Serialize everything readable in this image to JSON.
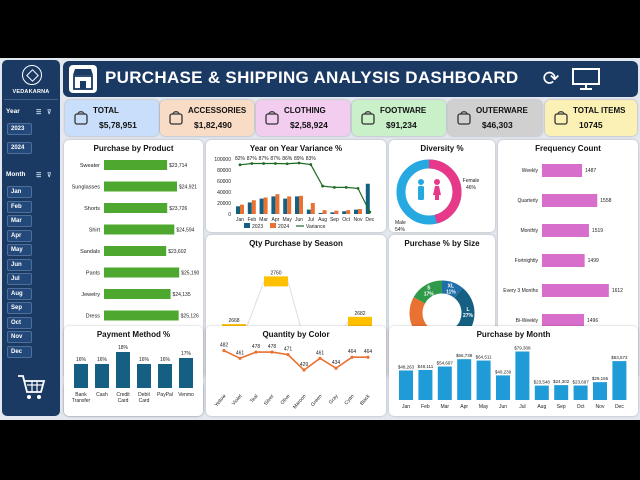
{
  "brand": "VEDAKARNA",
  "dashboard_title": "PURCHASE & SHIPPING ANALYSIS DASHBOARD",
  "slicers": {
    "year": {
      "label": "Year",
      "items": [
        "2023",
        "2024"
      ]
    },
    "month": {
      "label": "Month",
      "items": [
        "Jan",
        "Feb",
        "Mar",
        "Apr",
        "May",
        "Jun",
        "Jul",
        "Aug",
        "Sep",
        "Oct",
        "Nov",
        "Dec"
      ]
    }
  },
  "kpis": [
    {
      "label": "TOTAL",
      "value": "$5,78,951",
      "bg": "#c9defa",
      "icon": "cart-icon"
    },
    {
      "label": "ACCESSORIES",
      "value": "$1,82,490",
      "bg": "#f9dcc6",
      "icon": "bag-icon"
    },
    {
      "label": "CLOTHING",
      "value": "$2,58,924",
      "bg": "#f3cdf0",
      "icon": "yarn-icon"
    },
    {
      "label": "FOOTWARE",
      "value": "$91,234",
      "bg": "#c9f0c8",
      "icon": "footprints-icon"
    },
    {
      "label": "OUTERWARE",
      "value": "$46,303",
      "bg": "#d0d0d0",
      "icon": "jacket-icon"
    },
    {
      "label": "TOTAL ITEMS",
      "value": "10745",
      "bg": "#fcf1b4",
      "icon": "boxes-icon"
    }
  ],
  "colors": {
    "navy": "#1a3a63",
    "green": "#4ea72e",
    "blue": "#156082",
    "orange": "#e97132",
    "gold": "#ffc000",
    "pink": "#d86ecc",
    "sky": "#1f9bd7",
    "female": "#e8388a",
    "male": "#26a8e0"
  },
  "chart_data": [
    {
      "type": "bar",
      "title": "Purchase by Product",
      "orientation": "horizontal",
      "categories": [
        "Sweater",
        "Sunglasses",
        "Shorts",
        "Shirt",
        "Sandals",
        "Pants",
        "Jewelry",
        "Dress",
        "Blouse",
        "Belt"
      ],
      "values": [
        23714,
        24921,
        23726,
        24594,
        23602,
        25190,
        24135,
        25126,
        25037,
        23967
      ],
      "labels": [
        "$23,714",
        "$24,921",
        "$23,726",
        "$24,594",
        "$23,602",
        "$25,190",
        "$24,135",
        "$25,126",
        "$25,037",
        "$23,967"
      ],
      "xlim": [
        16000,
        27000
      ]
    },
    {
      "type": "bar",
      "title": "Year on Year Variance %",
      "categories": [
        "Jan",
        "Feb",
        "Mar",
        "Apr",
        "May",
        "Jun",
        "Jul",
        "Aug",
        "Sep",
        "Oct",
        "Nov",
        "Dec"
      ],
      "series": [
        {
          "name": "2023",
          "values": [
            14000,
            21000,
            28000,
            32000,
            28000,
            32000,
            8000,
            2000,
            3000,
            5000,
            8000,
            55000
          ]
        },
        {
          "name": "2024",
          "values": [
            17000,
            25000,
            30000,
            36000,
            32000,
            33000,
            20000,
            7000,
            6000,
            7000,
            9000,
            0
          ]
        },
        {
          "name": "Variance",
          "values": [
            82,
            87,
            87,
            87,
            86,
            89,
            83,
            0,
            -5,
            -5,
            -9,
            -100
          ]
        }
      ],
      "variance_labels": [
        "82%",
        "87%",
        "87%",
        "87%",
        "86%",
        "89%",
        "83%",
        "",
        "",
        "",
        "",
        ""
      ],
      "yticks": [
        "100000",
        "80000",
        "60000",
        "40000",
        "20000",
        "0"
      ],
      "ylim": [
        0,
        100000
      ]
    },
    {
      "type": "pie",
      "title": "Diversity %",
      "slices": [
        {
          "name": "Female",
          "value": 46,
          "label": "46%"
        },
        {
          "name": "Male",
          "value": 54,
          "label": "54%"
        }
      ]
    },
    {
      "type": "bar",
      "title": "Frequency Count",
      "orientation": "horizontal",
      "categories": [
        "Weekly",
        "Quarterly",
        "Monthly",
        "Fortnightly",
        "Every 3 Months",
        "Bi-Weekly",
        "Annually"
      ],
      "values": [
        1487,
        1558,
        1519,
        1499,
        1612,
        1496,
        1574
      ],
      "xlim": [
        1300,
        1650
      ]
    },
    {
      "type": "line",
      "title": "Qty Purchase by Season",
      "categories": [
        "Fall",
        "Spring",
        "Summer",
        "Winter"
      ],
      "values": [
        2668,
        2760,
        2635,
        2682
      ]
    },
    {
      "type": "pie",
      "title": "Purchase % by Size",
      "slices": [
        {
          "name": "XL",
          "value": 11,
          "label": "11%"
        },
        {
          "name": "L",
          "value": 27,
          "label": "27%"
        },
        {
          "name": "M",
          "value": 45,
          "label": "45%"
        },
        {
          "name": "S",
          "value": 17,
          "label": "17%"
        }
      ]
    },
    {
      "type": "bar",
      "title": "Payment Method %",
      "categories": [
        "Bank Transfer",
        "Cash",
        "Credit Card",
        "Debit Card",
        "PayPal",
        "Venmo"
      ],
      "values": [
        16,
        16,
        18,
        16,
        16,
        17
      ],
      "labels": [
        "16%",
        "16%",
        "18%",
        "16%",
        "16%",
        "17%"
      ],
      "ylim": [
        12,
        19
      ]
    },
    {
      "type": "line",
      "title": "Quantity by Color",
      "categories": [
        "Yellow",
        "Violet",
        "Teal",
        "Silver",
        "Olive",
        "Maroon",
        "Green",
        "Gray",
        "Cyan",
        "Black"
      ],
      "values": [
        482,
        461,
        478,
        478,
        471,
        429,
        461,
        434,
        464,
        464
      ],
      "ylim": [
        380,
        500
      ]
    },
    {
      "type": "bar",
      "title": "Purchase by Month",
      "categories": [
        "Jan",
        "Feb",
        "Mar",
        "Apr",
        "May",
        "Jun",
        "Jul",
        "Aug",
        "Sep",
        "Oct",
        "Nov",
        "Dec"
      ],
      "values": [
        48263,
        49111,
        54697,
        66738,
        64511,
        40239,
        79308,
        23548,
        24302,
        23697,
        29165,
        63573
      ],
      "labels": [
        "$48,263",
        "$49,111",
        "$54,697",
        "$66,738",
        "$64,511",
        "$40,239",
        "$79,308",
        "$23,548",
        "$24,302",
        "$23,697",
        "$29,165",
        "$63,573"
      ],
      "ylim": [
        0,
        85000
      ]
    }
  ]
}
